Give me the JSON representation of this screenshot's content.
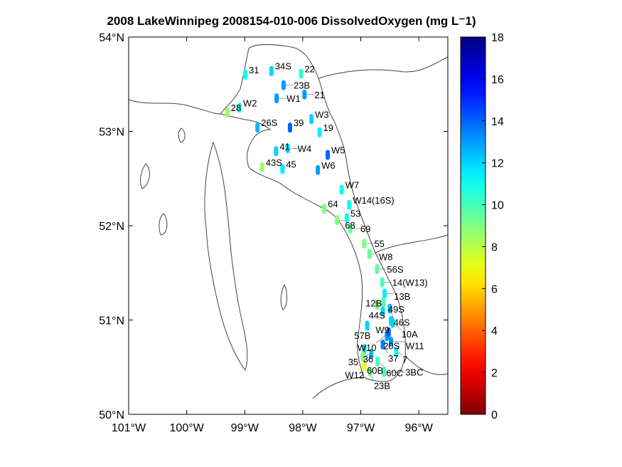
{
  "title": "2008 LakeWinnipeg 2008154-010-006 DissolvedOxygen (mg L⁻1)",
  "chart_data": {
    "type": "scatter",
    "title": "2008 LakeWinnipeg 2008154-010-006 DissolvedOxygen (mg L⁻1)",
    "xlim": [
      -101,
      -95.5
    ],
    "ylim": [
      50,
      54
    ],
    "x_ticks": [
      {
        "value": -101,
        "label": "101°W"
      },
      {
        "value": -100,
        "label": "100°W"
      },
      {
        "value": -99,
        "label": "99°W"
      },
      {
        "value": -98,
        "label": "98°W"
      },
      {
        "value": -97,
        "label": "97°W"
      },
      {
        "value": -96,
        "label": "96°W"
      }
    ],
    "y_ticks": [
      {
        "value": 54,
        "label": "54°N"
      },
      {
        "value": 53,
        "label": "53°N"
      },
      {
        "value": 52,
        "label": "52°N"
      },
      {
        "value": 51,
        "label": "51°N"
      },
      {
        "value": 50,
        "label": "50°N"
      }
    ],
    "colorbar": {
      "min": 0,
      "max": 18,
      "ticks": [
        0,
        2,
        4,
        6,
        8,
        10,
        12,
        14,
        16,
        18
      ],
      "colormap": "jet"
    },
    "stations": [
      {
        "name": "31",
        "lon": -98.99,
        "lat": 53.6,
        "value": 11
      },
      {
        "name": "34S",
        "lon": -98.54,
        "lat": 53.64,
        "value": 12
      },
      {
        "name": "22",
        "lon": -98.03,
        "lat": 53.61,
        "value": 10.5
      },
      {
        "name": "23B",
        "lon": -98.33,
        "lat": 53.49,
        "value": 13
      },
      {
        "name": "W1",
        "lon": -98.45,
        "lat": 53.35,
        "value": 13
      },
      {
        "name": "21",
        "lon": -97.97,
        "lat": 53.39,
        "value": 13
      },
      {
        "name": "W2",
        "lon": -99.09,
        "lat": 53.25,
        "value": 11
      },
      {
        "name": "28",
        "lon": -99.3,
        "lat": 53.2,
        "value": 8.5
      },
      {
        "name": "26S",
        "lon": -98.78,
        "lat": 53.04,
        "value": 12.5
      },
      {
        "name": "39",
        "lon": -98.22,
        "lat": 53.04,
        "value": 14
      },
      {
        "name": "W3",
        "lon": -97.85,
        "lat": 53.13,
        "value": 12
      },
      {
        "name": "19",
        "lon": -97.71,
        "lat": 52.99,
        "value": 11.5
      },
      {
        "name": "41",
        "lon": -98.46,
        "lat": 52.79,
        "value": 12
      },
      {
        "name": "W4",
        "lon": -98.26,
        "lat": 52.82,
        "value": 12
      },
      {
        "name": "W5",
        "lon": -97.57,
        "lat": 52.75,
        "value": 14
      },
      {
        "name": "W6",
        "lon": -97.74,
        "lat": 52.59,
        "value": 13
      },
      {
        "name": "43S",
        "lon": -98.7,
        "lat": 52.62,
        "value": 8.5
      },
      {
        "name": "45",
        "lon": -98.35,
        "lat": 52.6,
        "value": 11.5
      },
      {
        "name": "W7",
        "lon": -97.33,
        "lat": 52.38,
        "value": 11
      },
      {
        "name": "W14(16S)",
        "lon": -97.2,
        "lat": 52.22,
        "value": 11
      },
      {
        "name": "64",
        "lon": -97.63,
        "lat": 52.18,
        "value": 9
      },
      {
        "name": "53",
        "lon": -97.24,
        "lat": 52.08,
        "value": 11
      },
      {
        "name": "68",
        "lon": -97.41,
        "lat": 52.06,
        "value": 9
      },
      {
        "name": "69",
        "lon": -97.18,
        "lat": 51.97,
        "value": 9.5
      },
      {
        "name": "55",
        "lon": -96.94,
        "lat": 51.81,
        "value": 9
      },
      {
        "name": "W8",
        "lon": -96.85,
        "lat": 51.7,
        "value": 9.5
      },
      {
        "name": "56S",
        "lon": -96.72,
        "lat": 51.54,
        "value": 9.5
      },
      {
        "name": "14(W13)",
        "lon": -96.63,
        "lat": 51.4,
        "value": 10
      },
      {
        "name": "13B",
        "lon": -96.59,
        "lat": 51.28,
        "value": 11.5
      },
      {
        "name": "49S",
        "lon": -96.61,
        "lat": 51.19,
        "value": 10
      },
      {
        "name": "44S",
        "lon": -96.72,
        "lat": 51.16,
        "value": 9
      },
      {
        "name": "12B",
        "lon": -96.62,
        "lat": 51.09,
        "value": 12
      },
      {
        "name": "46S",
        "lon": -96.5,
        "lat": 51.12,
        "value": 12.5
      },
      {
        "name": "W9",
        "lon": -96.48,
        "lat": 50.99,
        "value": 12
      },
      {
        "name": "10A",
        "lon": -96.45,
        "lat": 50.97,
        "value": 12
      },
      {
        "name": "57B",
        "lon": -96.89,
        "lat": 50.94,
        "value": 12
      },
      {
        "name": "20S",
        "lon": -96.55,
        "lat": 50.83,
        "value": 13
      },
      {
        "name": "W10",
        "lon": -96.52,
        "lat": 50.87,
        "value": 14
      },
      {
        "name": "W11",
        "lon": -96.48,
        "lat": 50.77,
        "value": 13
      },
      {
        "name": "37",
        "lon": -96.62,
        "lat": 50.74,
        "value": 13.5
      },
      {
        "name": "36",
        "lon": -96.94,
        "lat": 50.69,
        "value": 12
      },
      {
        "name": "35",
        "lon": -96.82,
        "lat": 50.64,
        "value": 12.5
      },
      {
        "name": "7",
        "lon": -96.39,
        "lat": 50.66,
        "value": 11
      },
      {
        "name": "60B",
        "lon": -96.96,
        "lat": 50.61,
        "value": 9
      },
      {
        "name": "60C",
        "lon": -96.71,
        "lat": 50.56,
        "value": 10
      },
      {
        "name": "W12",
        "lon": -96.94,
        "lat": 50.51,
        "value": 7
      },
      {
        "name": "23B",
        "lon": -96.84,
        "lat": 50.45,
        "value": 9
      },
      {
        "name": "3BC",
        "lon": -96.6,
        "lat": 50.45,
        "value": 10
      }
    ]
  }
}
